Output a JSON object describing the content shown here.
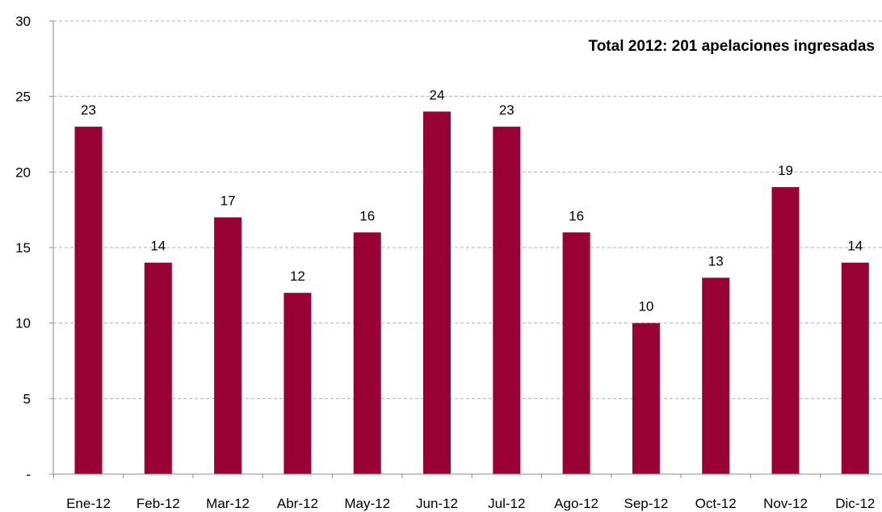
{
  "chart_data": {
    "type": "bar",
    "title": "",
    "xlabel": "",
    "ylabel": "",
    "annotation": "Total 2012: 201 apelaciones ingresadas",
    "categories": [
      "Ene-12",
      "Feb-12",
      "Mar-12",
      "Abr-12",
      "May-12",
      "Jun-12",
      "Jul-12",
      "Ago-12",
      "Sep-12",
      "Oct-12",
      "Nov-12",
      "Dic-12"
    ],
    "values": [
      23,
      14,
      17,
      12,
      16,
      24,
      23,
      16,
      10,
      13,
      19,
      14
    ],
    "ylim": [
      0,
      30
    ],
    "yticks": [
      0,
      5,
      10,
      15,
      20,
      25,
      30
    ],
    "ytick_labels": [
      "-",
      "5",
      "10",
      "15",
      "20",
      "25",
      "30"
    ],
    "grid": true,
    "bar_color": "#990033",
    "grid_color": "#b3b3b3"
  }
}
